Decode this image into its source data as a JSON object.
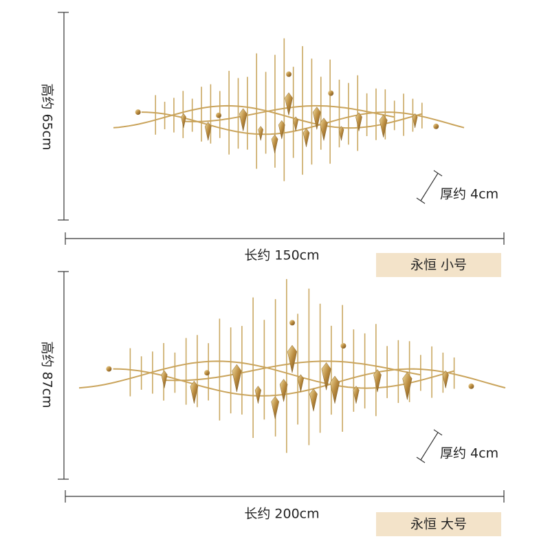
{
  "panels": [
    {
      "height_label": "高约 65cm",
      "thickness_label": "厚约 4cm",
      "length_label": "长约 150cm",
      "badge": "永恒 小号"
    },
    {
      "height_label": "高约 87cm",
      "thickness_label": "厚约 4cm",
      "length_label": "长约 200cm",
      "badge": "永恒 大号"
    }
  ]
}
